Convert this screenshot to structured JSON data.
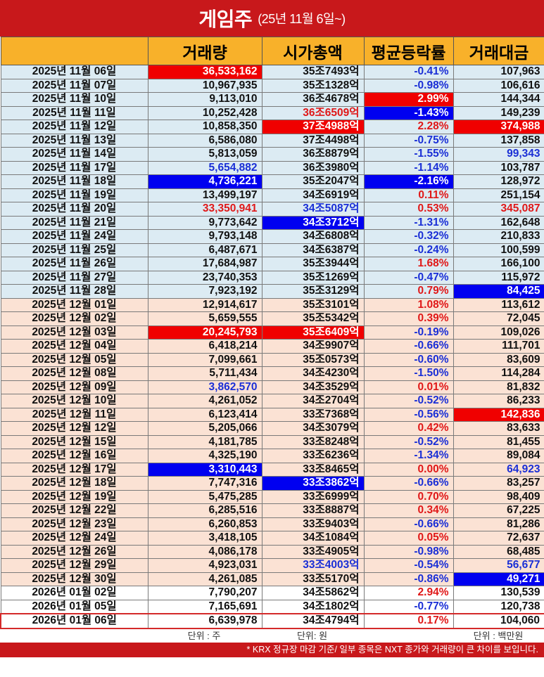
{
  "header": {
    "title": "게임주",
    "subtitle": "(25년 11월 6일~)"
  },
  "columns": [
    "거래량",
    "시가총액",
    "평균등락률",
    "거래대금"
  ],
  "rows": [
    {
      "date": "2025년 11월 06일",
      "group": "nov",
      "volume": "36,533,162",
      "mcap": "35조7493억",
      "change": "-0.41%",
      "amount": "107,963",
      "hl": {
        "volume": "red"
      }
    },
    {
      "date": "2025년 11월 07일",
      "group": "nov",
      "volume": "10,967,935",
      "mcap": "35조1328억",
      "change": "-0.98%",
      "amount": "106,616"
    },
    {
      "date": "2025년 11월 10일",
      "group": "nov",
      "volume": "9,113,010",
      "mcap": "36조4678억",
      "change": "2.99%",
      "amount": "144,344",
      "hl": {
        "change": "red"
      }
    },
    {
      "date": "2025년 11월 11일",
      "group": "nov",
      "volume": "10,252,428",
      "mcap": "36조6509억",
      "change": "-1.43%",
      "amount": "149,239",
      "hl": {
        "mcap": "txt-red",
        "change": "blue"
      }
    },
    {
      "date": "2025년 11월 12일",
      "group": "nov",
      "volume": "10,858,350",
      "mcap": "37조4988억",
      "change": "2.28%",
      "amount": "374,988",
      "hl": {
        "mcap": "red",
        "amount": "red"
      }
    },
    {
      "date": "2025년 11월 13일",
      "group": "nov",
      "volume": "6,586,080",
      "mcap": "37조4498억",
      "change": "-0.75%",
      "amount": "137,858"
    },
    {
      "date": "2025년 11월 14일",
      "group": "nov",
      "volume": "5,813,059",
      "mcap": "36조8879억",
      "change": "-1.55%",
      "amount": "99,343",
      "hl": {
        "amount": "txt-blue"
      }
    },
    {
      "date": "2025년 11월 17일",
      "group": "nov",
      "volume": "5,654,882",
      "mcap": "36조3980억",
      "change": "-1.14%",
      "amount": "103,787",
      "hl": {
        "volume": "txt-blue"
      }
    },
    {
      "date": "2025년 11월 18일",
      "group": "nov",
      "volume": "4,736,221",
      "mcap": "35조2047억",
      "change": "-2.16%",
      "amount": "128,972",
      "hl": {
        "volume": "blue",
        "change": "blue"
      }
    },
    {
      "date": "2025년 11월 19일",
      "group": "nov",
      "volume": "13,499,197",
      "mcap": "34조6919억",
      "change": "0.11%",
      "amount": "251,154"
    },
    {
      "date": "2025년 11월 20일",
      "group": "nov",
      "volume": "33,350,941",
      "mcap": "34조5087억",
      "change": "0.53%",
      "amount": "345,087",
      "hl": {
        "volume": "txt-red",
        "mcap": "txt-blue",
        "amount": "txt-red"
      }
    },
    {
      "date": "2025년 11월 21일",
      "group": "nov",
      "volume": "9,773,642",
      "mcap": "34조3712억",
      "change": "-1.31%",
      "amount": "162,648",
      "hl": {
        "mcap": "blue"
      }
    },
    {
      "date": "2025년 11월 24일",
      "group": "nov",
      "volume": "9,793,148",
      "mcap": "34조6808억",
      "change": "-0.32%",
      "amount": "210,833"
    },
    {
      "date": "2025년 11월 25일",
      "group": "nov",
      "volume": "6,487,671",
      "mcap": "34조6387억",
      "change": "-0.24%",
      "amount": "100,599"
    },
    {
      "date": "2025년 11월 26일",
      "group": "nov",
      "volume": "17,684,987",
      "mcap": "35조3944억",
      "change": "1.68%",
      "amount": "166,100"
    },
    {
      "date": "2025년 11월 27일",
      "group": "nov",
      "volume": "23,740,353",
      "mcap": "35조1269억",
      "change": "-0.47%",
      "amount": "115,972"
    },
    {
      "date": "2025년 11월 28일",
      "group": "nov",
      "volume": "7,923,192",
      "mcap": "35조3129억",
      "change": "0.79%",
      "amount": "84,425",
      "hl": {
        "amount": "blue"
      }
    },
    {
      "date": "2025년 12월 01일",
      "group": "dec",
      "volume": "12,914,617",
      "mcap": "35조3101억",
      "change": "1.08%",
      "amount": "113,612"
    },
    {
      "date": "2025년 12월 02일",
      "group": "dec",
      "volume": "5,659,555",
      "mcap": "35조5342억",
      "change": "0.39%",
      "amount": "72,045"
    },
    {
      "date": "2025년 12월 03일",
      "group": "dec",
      "volume": "20,245,793",
      "mcap": "35조6409억",
      "change": "-0.19%",
      "amount": "109,026",
      "hl": {
        "volume": "red",
        "mcap": "red"
      }
    },
    {
      "date": "2025년 12월 04일",
      "group": "dec",
      "volume": "6,418,214",
      "mcap": "34조9907억",
      "change": "-0.66%",
      "amount": "111,701"
    },
    {
      "date": "2025년 12월 05일",
      "group": "dec",
      "volume": "7,099,661",
      "mcap": "35조0573억",
      "change": "-0.60%",
      "amount": "83,609"
    },
    {
      "date": "2025년 12월 08일",
      "group": "dec",
      "volume": "5,711,434",
      "mcap": "34조4230억",
      "change": "-1.50%",
      "amount": "114,284"
    },
    {
      "date": "2025년 12월 09일",
      "group": "dec",
      "volume": "3,862,570",
      "mcap": "34조3529억",
      "change": "0.01%",
      "amount": "81,832",
      "hl": {
        "volume": "txt-blue"
      }
    },
    {
      "date": "2025년 12월 10일",
      "group": "dec",
      "volume": "4,261,052",
      "mcap": "34조2704억",
      "change": "-0.52%",
      "amount": "86,233"
    },
    {
      "date": "2025년 12월 11일",
      "group": "dec",
      "volume": "6,123,414",
      "mcap": "33조7368억",
      "change": "-0.56%",
      "amount": "142,836",
      "hl": {
        "amount": "red"
      }
    },
    {
      "date": "2025년 12월 12일",
      "group": "dec",
      "volume": "5,205,066",
      "mcap": "34조3079억",
      "change": "0.42%",
      "amount": "83,633"
    },
    {
      "date": "2025년 12월 15일",
      "group": "dec",
      "volume": "4,181,785",
      "mcap": "33조8248억",
      "change": "-0.52%",
      "amount": "81,455"
    },
    {
      "date": "2025년 12월 16일",
      "group": "dec",
      "volume": "4,325,190",
      "mcap": "33조6236억",
      "change": "-1.34%",
      "amount": "89,084"
    },
    {
      "date": "2025년 12월 17일",
      "group": "dec",
      "volume": "3,310,443",
      "mcap": "33조8465억",
      "change": "0.00%",
      "amount": "64,923",
      "hl": {
        "volume": "blue",
        "amount": "txt-blue"
      }
    },
    {
      "date": "2025년 12월 18일",
      "group": "dec",
      "volume": "7,747,316",
      "mcap": "33조3862억",
      "change": "-0.66%",
      "amount": "83,257",
      "hl": {
        "mcap": "blue"
      }
    },
    {
      "date": "2025년 12월 19일",
      "group": "dec",
      "volume": "5,475,285",
      "mcap": "33조6999억",
      "change": "0.70%",
      "amount": "98,409"
    },
    {
      "date": "2025년 12월 22일",
      "group": "dec",
      "volume": "6,285,516",
      "mcap": "33조8887억",
      "change": "0.34%",
      "amount": "67,225"
    },
    {
      "date": "2025년 12월 23일",
      "group": "dec",
      "volume": "6,260,853",
      "mcap": "33조9403억",
      "change": "-0.66%",
      "amount": "81,286"
    },
    {
      "date": "2025년 12월 24일",
      "group": "dec",
      "volume": "3,418,105",
      "mcap": "34조1084억",
      "change": "0.05%",
      "amount": "72,637"
    },
    {
      "date": "2025년 12월 26일",
      "group": "dec",
      "volume": "4,086,178",
      "mcap": "33조4905억",
      "change": "-0.98%",
      "amount": "68,485"
    },
    {
      "date": "2025년 12월 29일",
      "group": "dec",
      "volume": "4,923,031",
      "mcap": "33조4003억",
      "change": "-0.54%",
      "amount": "56,677",
      "hl": {
        "mcap": "txt-blue",
        "amount": "txt-blue"
      }
    },
    {
      "date": "2025년 12월 30일",
      "group": "dec",
      "volume": "4,261,085",
      "mcap": "33조5170억",
      "change": "-0.86%",
      "amount": "49,271",
      "hl": {
        "amount": "blue"
      }
    },
    {
      "date": "2026년 01월 02일",
      "group": "jan",
      "volume": "7,790,207",
      "mcap": "34조5862억",
      "change": "2.94%",
      "amount": "130,539"
    },
    {
      "date": "2026년 01월 05일",
      "group": "jan",
      "volume": "7,165,691",
      "mcap": "34조1802억",
      "change": "-0.77%",
      "amount": "120,738"
    },
    {
      "date": "2026년 01월 06일",
      "group": "jan",
      "volume": "6,639,978",
      "mcap": "34조4794억",
      "change": "0.17%",
      "amount": "104,060",
      "last": true
    }
  ],
  "units": {
    "volume": "단위 : 주",
    "mcap": "단위: 원",
    "amount": "단위 : 백만원"
  },
  "footnote": "* KRX 정규장 마감 기준/ 일부 종목은 NXT 종가와 거래량이 큰 차이를 보입니다.",
  "colors": {
    "title_bg": "#c8181b",
    "header_bg": "#f8b12a",
    "nov_row": "#dcebf3",
    "dec_row": "#fbe2d4",
    "highlight_red": "#f00000",
    "highlight_blue": "#0000f0"
  }
}
